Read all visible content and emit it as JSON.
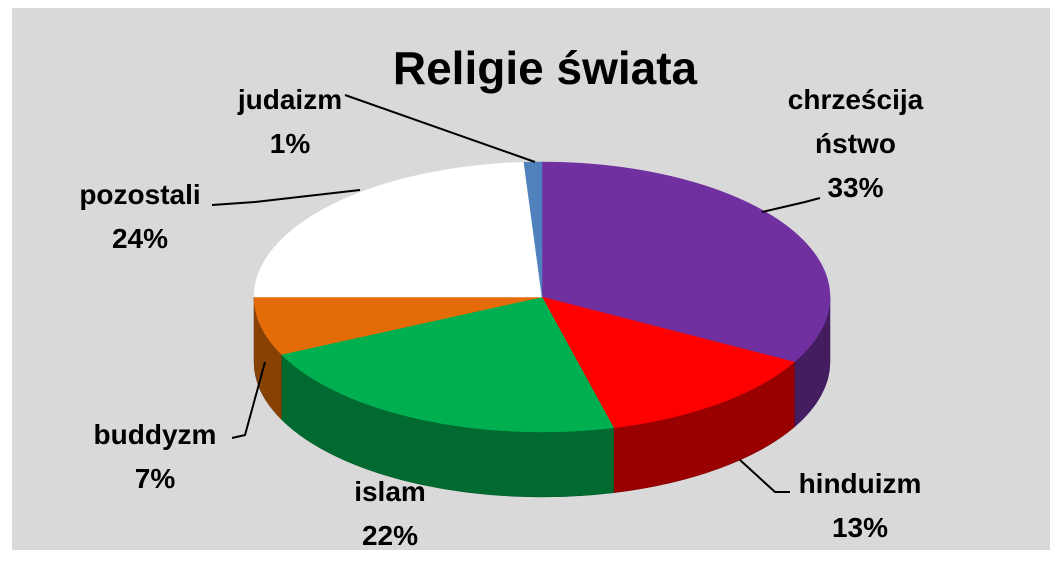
{
  "chart_data": {
    "type": "pie",
    "title": "Religie świata",
    "categories": [
      "chrześcijaństwo",
      "hinduizm",
      "islam",
      "buddyzm",
      "pozostali",
      "judaizm"
    ],
    "values": [
      33,
      13,
      22,
      7,
      24,
      1
    ],
    "value_labels": [
      "33%",
      "13%",
      "22%",
      "7%",
      "24%",
      "1%"
    ],
    "colors": [
      "#7030a0",
      "#ff0000",
      "#00b050",
      "#e36c09",
      "#ffffff",
      "#4f81bd"
    ]
  }
}
